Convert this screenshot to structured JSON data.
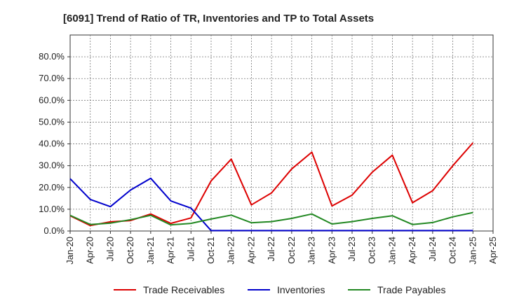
{
  "chart_data": {
    "type": "line",
    "title": "[6091]  Trend of Ratio of TR, Inventories and TP to Total Assets",
    "xlabel": "",
    "ylabel": "",
    "x_ticks": [
      "Jan-20",
      "Apr-20",
      "Jul-20",
      "Oct-20",
      "Jan-21",
      "Apr-21",
      "Jul-21",
      "Oct-21",
      "Jan-22",
      "Apr-22",
      "Jul-22",
      "Oct-22",
      "Jan-23",
      "Apr-23",
      "Jul-23",
      "Oct-23",
      "Jan-24",
      "Apr-24",
      "Jul-24",
      "Oct-24",
      "Jan-25",
      "Apr-25"
    ],
    "x": [
      "Jan-20",
      "Apr-20",
      "Jul-20",
      "Oct-20",
      "Jan-21",
      "Apr-21",
      "Jul-21",
      "Oct-21",
      "Jan-22",
      "Apr-22",
      "Jul-22",
      "Oct-22",
      "Jan-23",
      "Apr-23",
      "Jul-23",
      "Oct-23",
      "Jan-24",
      "Apr-24",
      "Jul-24",
      "Oct-24",
      "Jan-25"
    ],
    "y_ticks": [
      "0.0%",
      "10.0%",
      "20.0%",
      "30.0%",
      "40.0%",
      "50.0%",
      "60.0%",
      "70.0%",
      "80.0%"
    ],
    "ylim": [
      0,
      90
    ],
    "grid": true,
    "legend_position": "bottom",
    "series": [
      {
        "name": "Trade Receivables",
        "color": "#dd0000",
        "values": [
          7.0,
          2.5,
          4.2,
          4.8,
          7.8,
          3.5,
          6.0,
          23.0,
          33.0,
          12.0,
          17.5,
          28.5,
          36.2,
          11.5,
          16.5,
          27.0,
          34.8,
          13.0,
          18.5,
          30.0,
          40.5
        ]
      },
      {
        "name": "Inventories",
        "color": "#0000cc",
        "values": [
          24.0,
          14.5,
          11.2,
          18.8,
          24.2,
          13.8,
          10.5,
          0.2,
          0.2,
          0.2,
          0.2,
          0.2,
          0.2,
          0.2,
          0.2,
          0.2,
          0.2,
          0.2,
          0.2,
          0.2,
          0.2
        ]
      },
      {
        "name": "Trade Payables",
        "color": "#228822",
        "values": [
          7.2,
          3.0,
          3.6,
          5.2,
          7.2,
          2.8,
          3.5,
          5.5,
          7.3,
          3.8,
          4.3,
          5.8,
          7.8,
          3.2,
          4.3,
          5.8,
          7.0,
          3.0,
          3.9,
          6.5,
          8.5
        ]
      }
    ]
  }
}
